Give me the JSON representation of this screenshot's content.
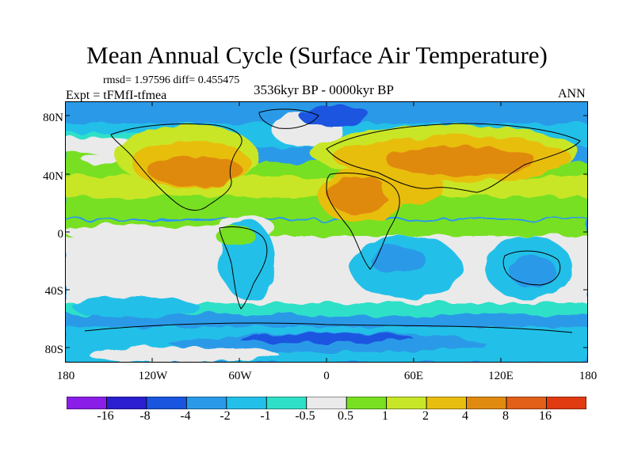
{
  "title": "Mean Annual Cycle (Surface Air Temperature)",
  "stats": "rmsd= 1.97596 diff= 0.455475",
  "experiment": "Expt = tFMfI-tfmea",
  "period": "3536kyr BP - 0000kyr BP",
  "season": "ANN",
  "map": {
    "lat_ticks": [
      "80N",
      "40N",
      "0",
      "40S",
      "80S"
    ],
    "lon_ticks": [
      "180",
      "120W",
      "60W",
      "0",
      "60E",
      "120E",
      "180"
    ]
  },
  "colorbar": {
    "labels": [
      "-16",
      "-8",
      "-4",
      "-2",
      "-1",
      "-0.5",
      "0.5",
      "1",
      "2",
      "4",
      "8",
      "16"
    ],
    "colors": [
      "#8a1ee8",
      "#2a1ed0",
      "#1a55e0",
      "#2a9ae8",
      "#22c0e8",
      "#2ee0c8",
      "#eaeaea",
      "#78e020",
      "#c8e628",
      "#e8be10",
      "#e08a10",
      "#e26018",
      "#e03a10"
    ]
  }
}
